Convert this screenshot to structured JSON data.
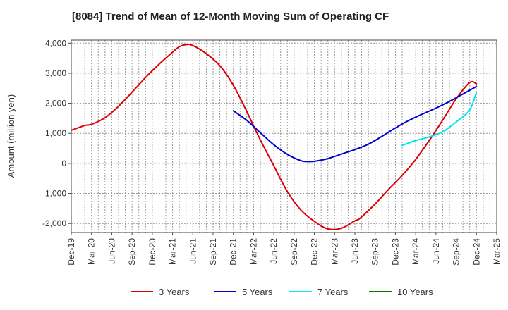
{
  "chart_data": {
    "type": "line",
    "title": "[8084]  Trend of Mean of 12-Month Moving Sum of Operating CF",
    "xlabel": "",
    "ylabel": "Amount (million yen)",
    "ylim": [
      -2300,
      4100
    ],
    "yticks": [
      4000,
      3000,
      2000,
      1000,
      0,
      -1000,
      -2000
    ],
    "ytick_labels": [
      "4,000",
      "3,000",
      "2,000",
      "1,000",
      "0",
      "-1,000",
      "-2,000"
    ],
    "x_index_range": [
      0,
      63
    ],
    "xticks": [
      "Dec-19",
      "Mar-20",
      "Jun-20",
      "Sep-20",
      "Dec-20",
      "Mar-21",
      "Jun-21",
      "Sep-21",
      "Dec-21",
      "Mar-22",
      "Jun-22",
      "Sep-22",
      "Dec-22",
      "Mar-23",
      "Jun-23",
      "Sep-23",
      "Dec-23",
      "Mar-24",
      "Jun-24",
      "Sep-24",
      "Dec-24",
      "Mar-25"
    ],
    "grid": true,
    "legend_position": "bottom",
    "series": [
      {
        "name": "3 Years",
        "color": "#dd0000",
        "x": [
          0,
          2,
          3,
          5,
          7,
          9,
          11,
          13,
          15,
          16,
          17,
          18,
          20,
          22,
          24,
          26,
          28,
          30,
          32,
          34,
          36,
          38,
          40,
          42,
          42.5,
          43,
          45,
          47,
          49,
          51,
          53,
          55,
          57,
          59,
          60
        ],
        "values": [
          1100,
          1260,
          1300,
          1520,
          1900,
          2370,
          2860,
          3300,
          3700,
          3880,
          3950,
          3920,
          3650,
          3250,
          2600,
          1720,
          780,
          -80,
          -940,
          -1550,
          -1930,
          -2180,
          -2160,
          -1910,
          -1870,
          -1780,
          -1350,
          -860,
          -400,
          130,
          760,
          1440,
          2150,
          2690,
          2650
        ],
        "labels": []
      },
      {
        "name": "5 Years",
        "color": "#0000cc",
        "x": [
          24,
          26,
          28,
          30,
          32,
          34,
          35,
          36,
          38,
          40,
          42,
          44,
          46,
          48,
          50,
          52,
          54,
          56,
          58,
          60
        ],
        "values": [
          1750,
          1430,
          1020,
          620,
          300,
          90,
          60,
          70,
          160,
          310,
          460,
          640,
          900,
          1180,
          1430,
          1640,
          1840,
          2060,
          2310,
          2560
        ],
        "labels": []
      },
      {
        "name": "7 Years",
        "color": "#00e5ee",
        "x": [
          49,
          51,
          53,
          55,
          57,
          59,
          60
        ],
        "values": [
          600,
          760,
          880,
          1050,
          1380,
          1780,
          2380
        ],
        "labels": []
      },
      {
        "name": "10 Years",
        "color": "#008000",
        "x": [],
        "values": [],
        "labels": []
      }
    ]
  }
}
